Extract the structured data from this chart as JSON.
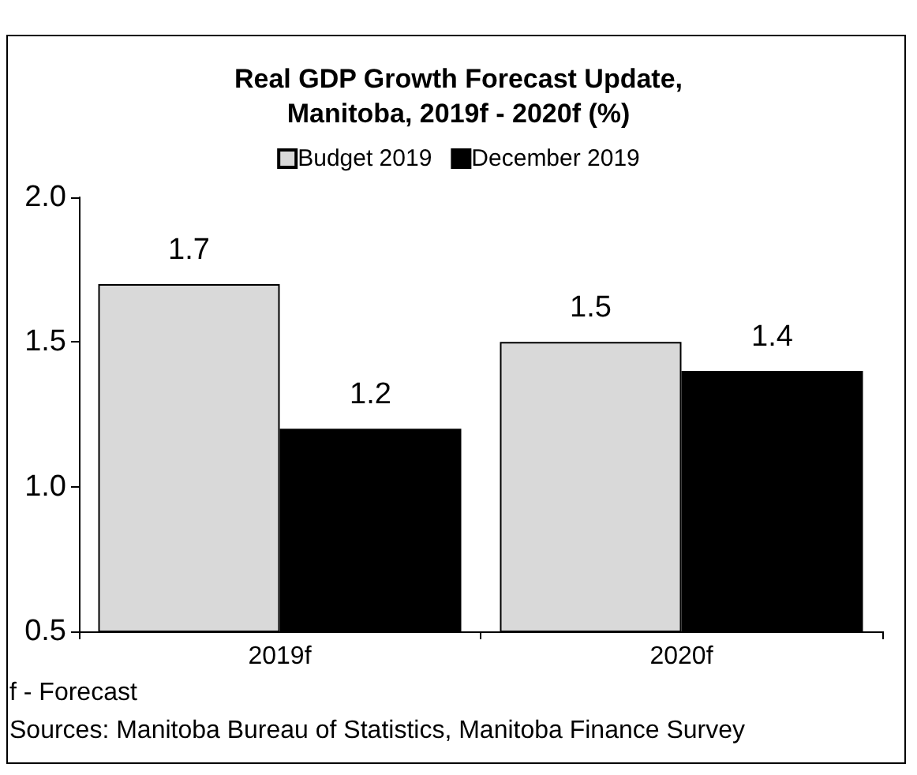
{
  "chart_data": {
    "type": "bar",
    "title": "Real GDP Growth Forecast Update,\nManitoba, 2019f - 2020f (%)",
    "categories": [
      "2019f",
      "2020f"
    ],
    "series": [
      {
        "name": "Budget 2019",
        "color": "#d9d9d9",
        "values": [
          1.7,
          1.5
        ]
      },
      {
        "name": "December 2019",
        "color": "#000000",
        "values": [
          1.2,
          1.4
        ]
      }
    ],
    "ylim": [
      0.5,
      2.0
    ],
    "yticks": [
      0.5,
      {
        "value": 1.0,
        "label": "1.0"
      },
      1.5,
      {
        "value": 2.0,
        "label": "2.0"
      }
    ],
    "data_labels": true,
    "grid": false,
    "legend": "top",
    "annotations": [
      "f - Forecast",
      "Sources: Manitoba Bureau of Statistics, Manitoba Finance Survey"
    ]
  }
}
